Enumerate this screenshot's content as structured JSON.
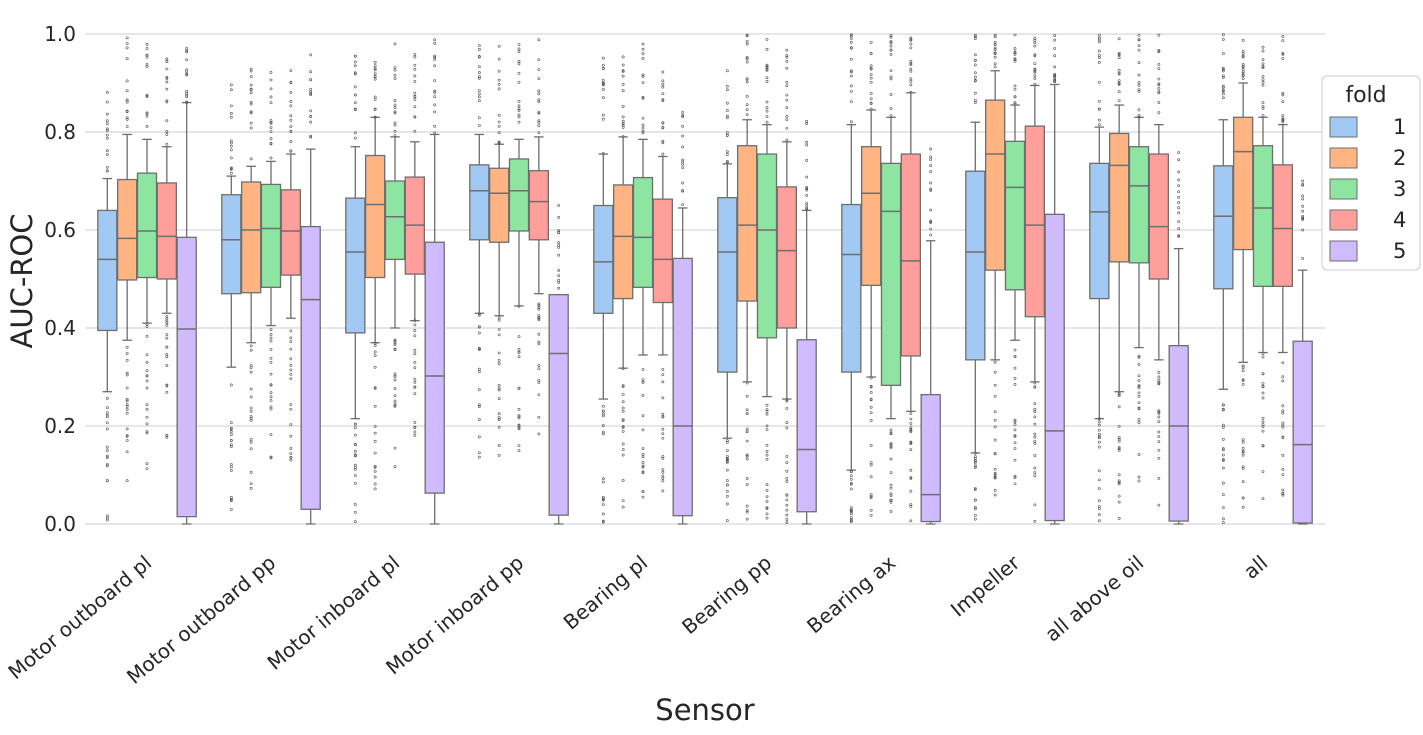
{
  "chart_data": {
    "type": "boxplot",
    "xlabel": "Sensor",
    "ylabel": "AUC-ROC",
    "ylim": [
      0,
      1
    ],
    "yticks": [
      "0.0",
      "0.2",
      "0.4",
      "0.6",
      "0.8",
      "1.0"
    ],
    "grid": true,
    "categories": [
      "Motor outboard pl",
      "Motor outboard pp",
      "Motor inboard pl",
      "Motor inboard pp",
      "Bearing pl",
      "Bearing pp",
      "Bearing ax",
      "Impeller",
      "all above oil",
      "all"
    ],
    "highlight_category": "Impeller",
    "highlight_color": "#ff0000",
    "legend": {
      "title": "fold",
      "position": "right",
      "entries": [
        "1",
        "2",
        "3",
        "4",
        "5"
      ]
    },
    "series": [
      {
        "name": "1",
        "color": "#a1c9f4",
        "boxes": [
          {
            "whislo": 0.27,
            "q1": 0.395,
            "med": 0.54,
            "q3": 0.64,
            "whishi": 0.705
          },
          {
            "whislo": 0.32,
            "q1": 0.47,
            "med": 0.58,
            "q3": 0.672,
            "whishi": 0.71
          },
          {
            "whislo": 0.215,
            "q1": 0.39,
            "med": 0.555,
            "q3": 0.665,
            "whishi": 0.77
          },
          {
            "whislo": 0.43,
            "q1": 0.58,
            "med": 0.68,
            "q3": 0.733,
            "whishi": 0.795
          },
          {
            "whislo": 0.255,
            "q1": 0.43,
            "med": 0.535,
            "q3": 0.65,
            "whishi": 0.755
          },
          {
            "whislo": 0.175,
            "q1": 0.31,
            "med": 0.555,
            "q3": 0.666,
            "whishi": 0.735
          },
          {
            "whislo": 0.11,
            "q1": 0.31,
            "med": 0.55,
            "q3": 0.652,
            "whishi": 0.815
          },
          {
            "whislo": 0.145,
            "q1": 0.335,
            "med": 0.555,
            "q3": 0.72,
            "whishi": 0.82
          },
          {
            "whislo": 0.215,
            "q1": 0.46,
            "med": 0.637,
            "q3": 0.736,
            "whishi": 0.81
          },
          {
            "whislo": 0.275,
            "q1": 0.48,
            "med": 0.628,
            "q3": 0.731,
            "whishi": 0.825
          }
        ]
      },
      {
        "name": "2",
        "color": "#ffb482",
        "boxes": [
          {
            "whislo": 0.375,
            "q1": 0.498,
            "med": 0.583,
            "q3": 0.703,
            "whishi": 0.795
          },
          {
            "whislo": 0.37,
            "q1": 0.472,
            "med": 0.6,
            "q3": 0.698,
            "whishi": 0.73
          },
          {
            "whislo": 0.37,
            "q1": 0.503,
            "med": 0.652,
            "q3": 0.752,
            "whishi": 0.83
          },
          {
            "whislo": 0.425,
            "q1": 0.575,
            "med": 0.675,
            "q3": 0.726,
            "whishi": 0.775
          },
          {
            "whislo": 0.318,
            "q1": 0.46,
            "med": 0.587,
            "q3": 0.692,
            "whishi": 0.79
          },
          {
            "whislo": 0.29,
            "q1": 0.455,
            "med": 0.61,
            "q3": 0.772,
            "whishi": 0.825
          },
          {
            "whislo": 0.3,
            "q1": 0.487,
            "med": 0.675,
            "q3": 0.77,
            "whishi": 0.845
          },
          {
            "whislo": 0.335,
            "q1": 0.518,
            "med": 0.755,
            "q3": 0.865,
            "whishi": 0.925
          },
          {
            "whislo": 0.27,
            "q1": 0.535,
            "med": 0.732,
            "q3": 0.797,
            "whishi": 0.855
          },
          {
            "whislo": 0.33,
            "q1": 0.56,
            "med": 0.76,
            "q3": 0.83,
            "whishi": 0.9
          }
        ]
      },
      {
        "name": "3",
        "color": "#8de5a1",
        "boxes": [
          {
            "whislo": 0.41,
            "q1": 0.503,
            "med": 0.598,
            "q3": 0.716,
            "whishi": 0.785
          },
          {
            "whislo": 0.405,
            "q1": 0.483,
            "med": 0.603,
            "q3": 0.693,
            "whishi": 0.74
          },
          {
            "whislo": 0.4,
            "q1": 0.54,
            "med": 0.627,
            "q3": 0.7,
            "whishi": 0.79
          },
          {
            "whislo": 0.445,
            "q1": 0.598,
            "med": 0.68,
            "q3": 0.745,
            "whishi": 0.785
          },
          {
            "whislo": 0.345,
            "q1": 0.483,
            "med": 0.585,
            "q3": 0.707,
            "whishi": 0.785
          },
          {
            "whislo": 0.26,
            "q1": 0.38,
            "med": 0.6,
            "q3": 0.755,
            "whishi": 0.815
          },
          {
            "whislo": 0.215,
            "q1": 0.283,
            "med": 0.638,
            "q3": 0.736,
            "whishi": 0.83
          },
          {
            "whislo": 0.375,
            "q1": 0.478,
            "med": 0.687,
            "q3": 0.781,
            "whishi": 0.855
          },
          {
            "whislo": 0.36,
            "q1": 0.533,
            "med": 0.69,
            "q3": 0.77,
            "whishi": 0.83
          },
          {
            "whislo": 0.35,
            "q1": 0.485,
            "med": 0.645,
            "q3": 0.772,
            "whishi": 0.83
          }
        ]
      },
      {
        "name": "4",
        "color": "#ff9f9b",
        "boxes": [
          {
            "whislo": 0.43,
            "q1": 0.5,
            "med": 0.587,
            "q3": 0.696,
            "whishi": 0.77
          },
          {
            "whislo": 0.42,
            "q1": 0.508,
            "med": 0.598,
            "q3": 0.682,
            "whishi": 0.755
          },
          {
            "whislo": 0.415,
            "q1": 0.51,
            "med": 0.61,
            "q3": 0.708,
            "whishi": 0.78
          },
          {
            "whislo": 0.47,
            "q1": 0.58,
            "med": 0.658,
            "q3": 0.721,
            "whishi": 0.79
          },
          {
            "whislo": 0.345,
            "q1": 0.452,
            "med": 0.54,
            "q3": 0.663,
            "whishi": 0.75
          },
          {
            "whislo": 0.255,
            "q1": 0.4,
            "med": 0.558,
            "q3": 0.688,
            "whishi": 0.78
          },
          {
            "whislo": 0.23,
            "q1": 0.343,
            "med": 0.537,
            "q3": 0.755,
            "whishi": 0.88
          },
          {
            "whislo": 0.29,
            "q1": 0.423,
            "med": 0.61,
            "q3": 0.812,
            "whishi": 0.895
          },
          {
            "whislo": 0.335,
            "q1": 0.5,
            "med": 0.607,
            "q3": 0.755,
            "whishi": 0.815
          },
          {
            "whislo": 0.35,
            "q1": 0.485,
            "med": 0.603,
            "q3": 0.733,
            "whishi": 0.815
          }
        ]
      },
      {
        "name": "5",
        "color": "#d0bbff",
        "boxes": [
          {
            "whislo": 0.0,
            "q1": 0.015,
            "med": 0.398,
            "q3": 0.585,
            "whishi": 0.86
          },
          {
            "whislo": 0.0,
            "q1": 0.03,
            "med": 0.458,
            "q3": 0.607,
            "whishi": 0.765
          },
          {
            "whislo": 0.0,
            "q1": 0.063,
            "med": 0.302,
            "q3": 0.575,
            "whishi": 0.795
          },
          {
            "whislo": 0.0,
            "q1": 0.018,
            "med": 0.348,
            "q3": 0.468,
            "whishi": 0.468
          },
          {
            "whislo": 0.0,
            "q1": 0.017,
            "med": 0.2,
            "q3": 0.542,
            "whishi": 0.645
          },
          {
            "whislo": 0.0,
            "q1": 0.025,
            "med": 0.152,
            "q3": 0.376,
            "whishi": 0.64
          },
          {
            "whislo": 0.0,
            "q1": 0.005,
            "med": 0.06,
            "q3": 0.264,
            "whishi": 0.578
          },
          {
            "whislo": 0.0,
            "q1": 0.007,
            "med": 0.19,
            "q3": 0.632,
            "whishi": 0.897
          },
          {
            "whislo": 0.0,
            "q1": 0.006,
            "med": 0.2,
            "q3": 0.364,
            "whishi": 0.562
          },
          {
            "whislo": 0.0,
            "q1": 0.002,
            "med": 0.162,
            "q3": 0.373,
            "whishi": 0.518
          }
        ]
      }
    ]
  }
}
